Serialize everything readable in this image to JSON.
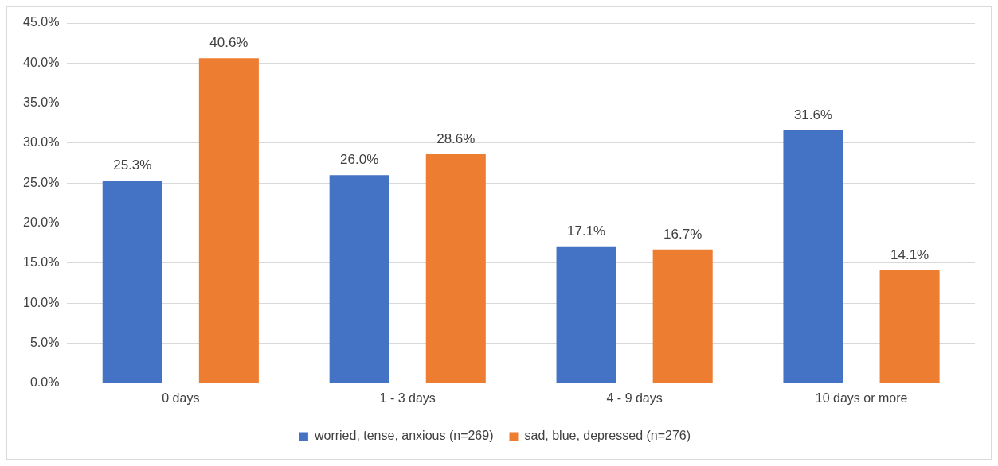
{
  "chart_data": {
    "type": "bar",
    "categories": [
      "0 days",
      "1 - 3 days",
      "4 - 9 days",
      "10 days or more"
    ],
    "series": [
      {
        "name": "worried, tense, anxious (n=269)",
        "color": "#4472c4",
        "values": [
          25.3,
          26.0,
          17.1,
          31.6
        ],
        "value_labels": [
          "25.3%",
          "26.0%",
          "17.1%",
          "31.6%"
        ]
      },
      {
        "name": "sad, blue, depressed (n=276)",
        "color": "#ed7d31",
        "values": [
          40.6,
          28.6,
          16.7,
          14.1
        ],
        "value_labels": [
          "40.6%",
          "28.6%",
          "16.7%",
          "14.1%"
        ]
      }
    ],
    "ylim": [
      0,
      45
    ],
    "yticks": [
      {
        "value": 0,
        "label": "0.0%"
      },
      {
        "value": 5,
        "label": "5.0%"
      },
      {
        "value": 10,
        "label": "10.0%"
      },
      {
        "value": 15,
        "label": "15.0%"
      },
      {
        "value": 20,
        "label": "20.0%"
      },
      {
        "value": 25,
        "label": "25.0%"
      },
      {
        "value": 30,
        "label": "30.0%"
      },
      {
        "value": 35,
        "label": "35.0%"
      },
      {
        "value": 40,
        "label": "40.0%"
      },
      {
        "value": 45,
        "label": "45.0%"
      }
    ],
    "grid": "y",
    "legend": "bottom"
  }
}
